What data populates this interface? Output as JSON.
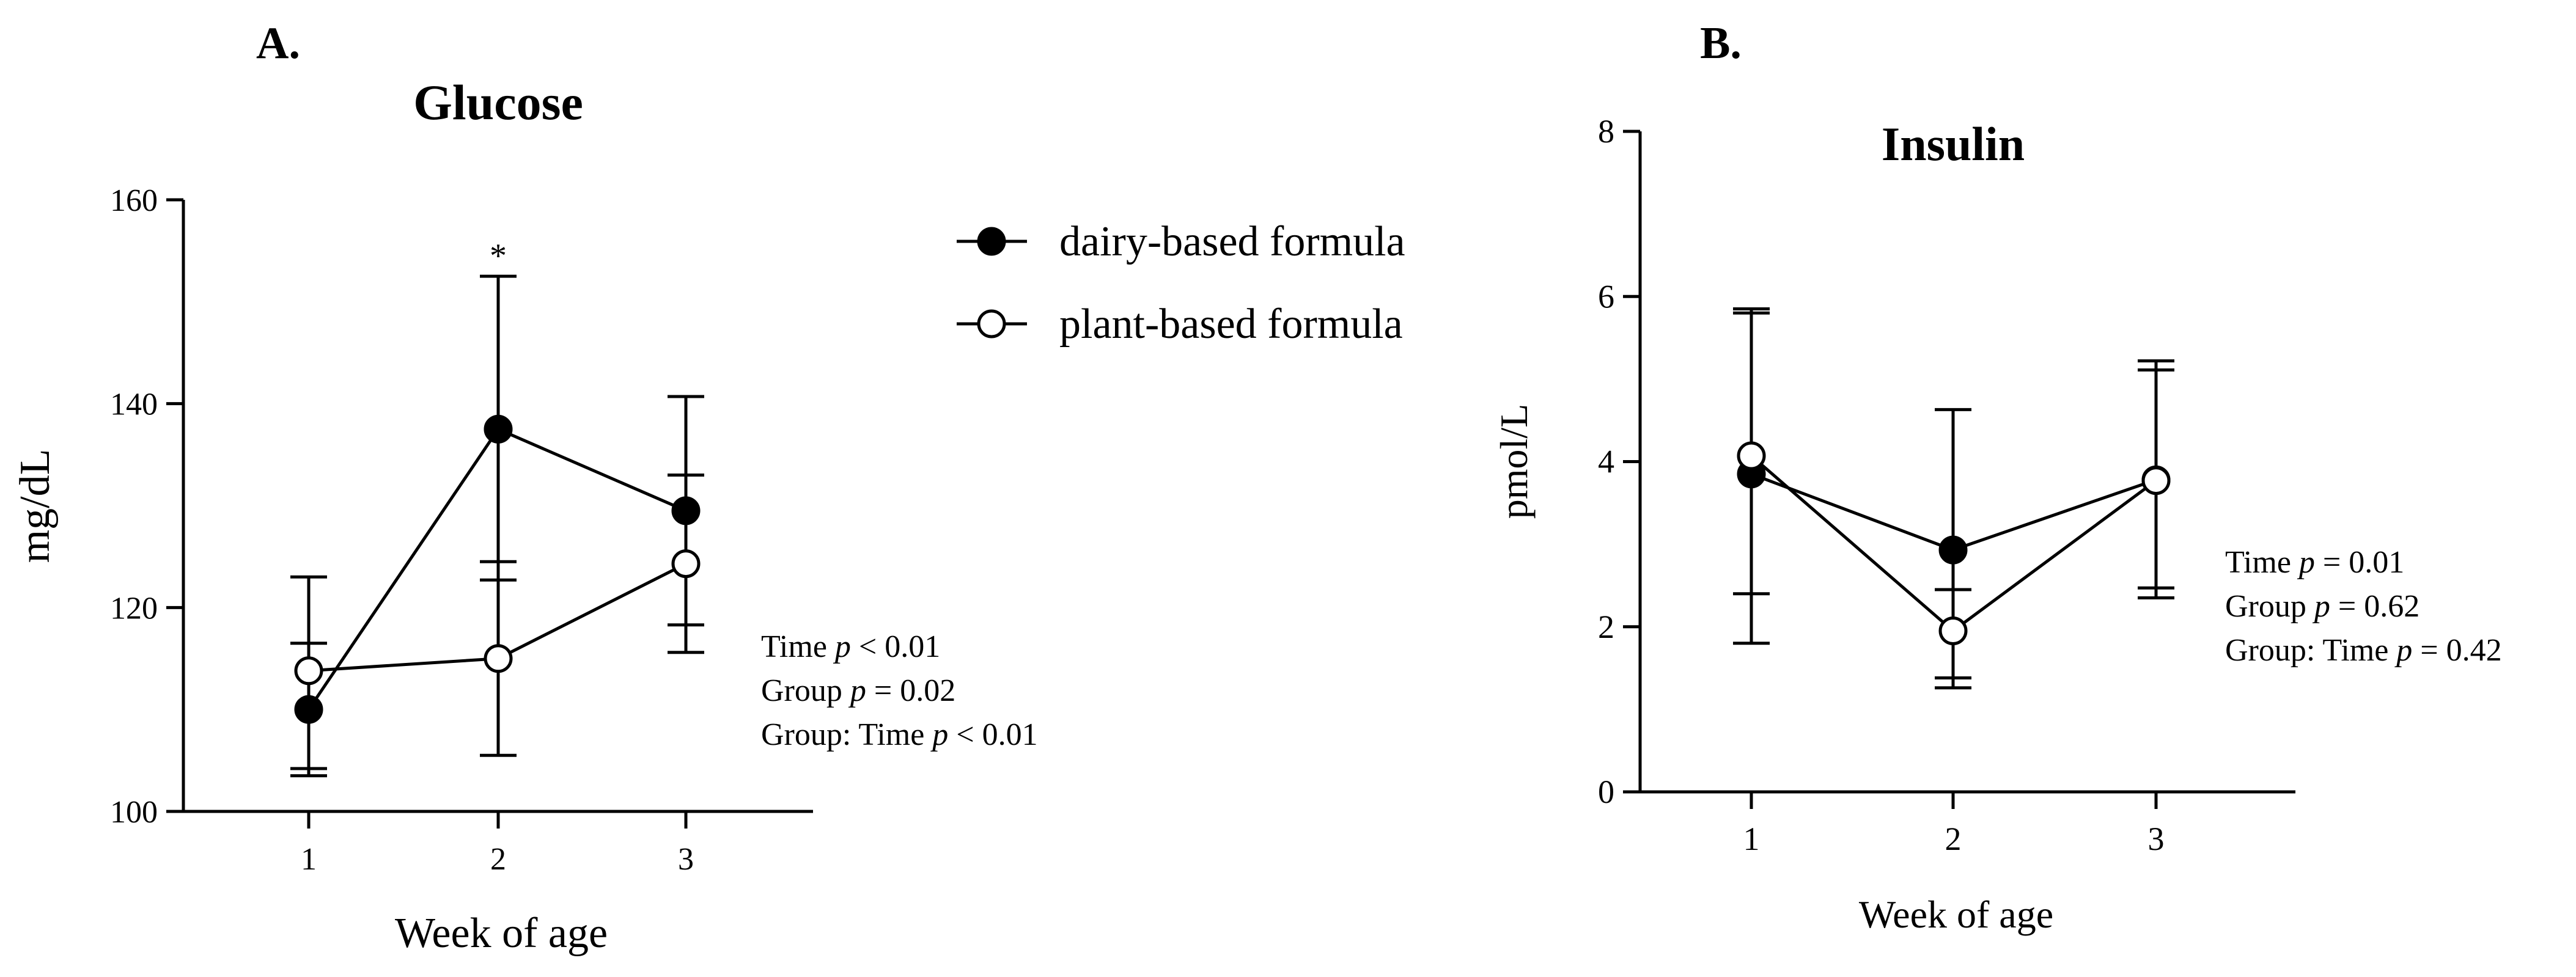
{
  "panels": [
    {
      "letter": "A.",
      "title": "Glucose",
      "ylabel": "mg/dL",
      "xlabel": "Week of age",
      "yticks": [
        100,
        120,
        140,
        160
      ],
      "ylim": [
        100,
        160
      ],
      "xticks": [
        1,
        2,
        3
      ],
      "stats": [
        {
          "pre": "Time ",
          "p": "p",
          "post": " < 0.01"
        },
        {
          "pre": "Group ",
          "p": "p",
          "post": " = 0.02"
        },
        {
          "pre": "Group: Time ",
          "p": "p",
          "post": " < 0.01"
        }
      ],
      "annotation": {
        "text": "*",
        "x": 2,
        "y": 154
      }
    },
    {
      "letter": "B.",
      "title": "Insulin",
      "ylabel": "pmol/L",
      "xlabel": "Week of age",
      "yticks": [
        0,
        2,
        4,
        6,
        8
      ],
      "ylim": [
        0,
        8
      ],
      "xticks": [
        1,
        2,
        3
      ],
      "stats": [
        {
          "pre": "Time ",
          "p": "p",
          "post": " = 0.01"
        },
        {
          "pre": "Group ",
          "p": "p",
          "post": " = 0.62"
        },
        {
          "pre": "Group: Time ",
          "p": "p",
          "post": " = 0.42"
        }
      ]
    }
  ],
  "legend": {
    "placement": "between panels",
    "items": [
      {
        "label": "dairy-based formula",
        "marker": "filled"
      },
      {
        "label": "plant-based formula",
        "marker": "open"
      }
    ]
  },
  "chart_data": [
    {
      "type": "line",
      "title": "Glucose",
      "xlabel": "Week of age",
      "ylabel": "mg/dL",
      "x": [
        1,
        2,
        3
      ],
      "ylim": [
        100,
        160
      ],
      "series": [
        {
          "name": "dairy-based formula",
          "marker": "filled",
          "values": [
            110.0,
            137.5,
            129.5
          ],
          "err_upper": [
            13.0,
            15.0,
            11.2
          ],
          "err_lower": [
            6.5,
            14.8,
            11.2
          ]
        },
        {
          "name": "plant-based formula",
          "marker": "open",
          "values": [
            113.8,
            115.0,
            124.3
          ],
          "err_upper": [
            2.7,
            9.5,
            8.7
          ],
          "err_lower": [
            9.6,
            9.5,
            8.7
          ]
        }
      ]
    },
    {
      "type": "line",
      "title": "Insulin",
      "xlabel": "Week of age",
      "ylabel": "pmol/L",
      "x": [
        1,
        2,
        3
      ],
      "ylim": [
        0,
        8
      ],
      "series": [
        {
          "name": "dairy-based formula",
          "marker": "filled",
          "values": [
            3.85,
            2.93,
            3.78
          ],
          "err_upper": [
            2.0,
            1.7,
            1.33
          ],
          "err_lower": [
            2.05,
            1.67,
            1.43
          ]
        },
        {
          "name": "plant-based formula",
          "marker": "open",
          "values": [
            4.07,
            1.95,
            3.77
          ],
          "err_upper": [
            1.73,
            0.5,
            1.45
          ],
          "err_lower": [
            1.67,
            0.57,
            1.3
          ]
        }
      ]
    }
  ]
}
